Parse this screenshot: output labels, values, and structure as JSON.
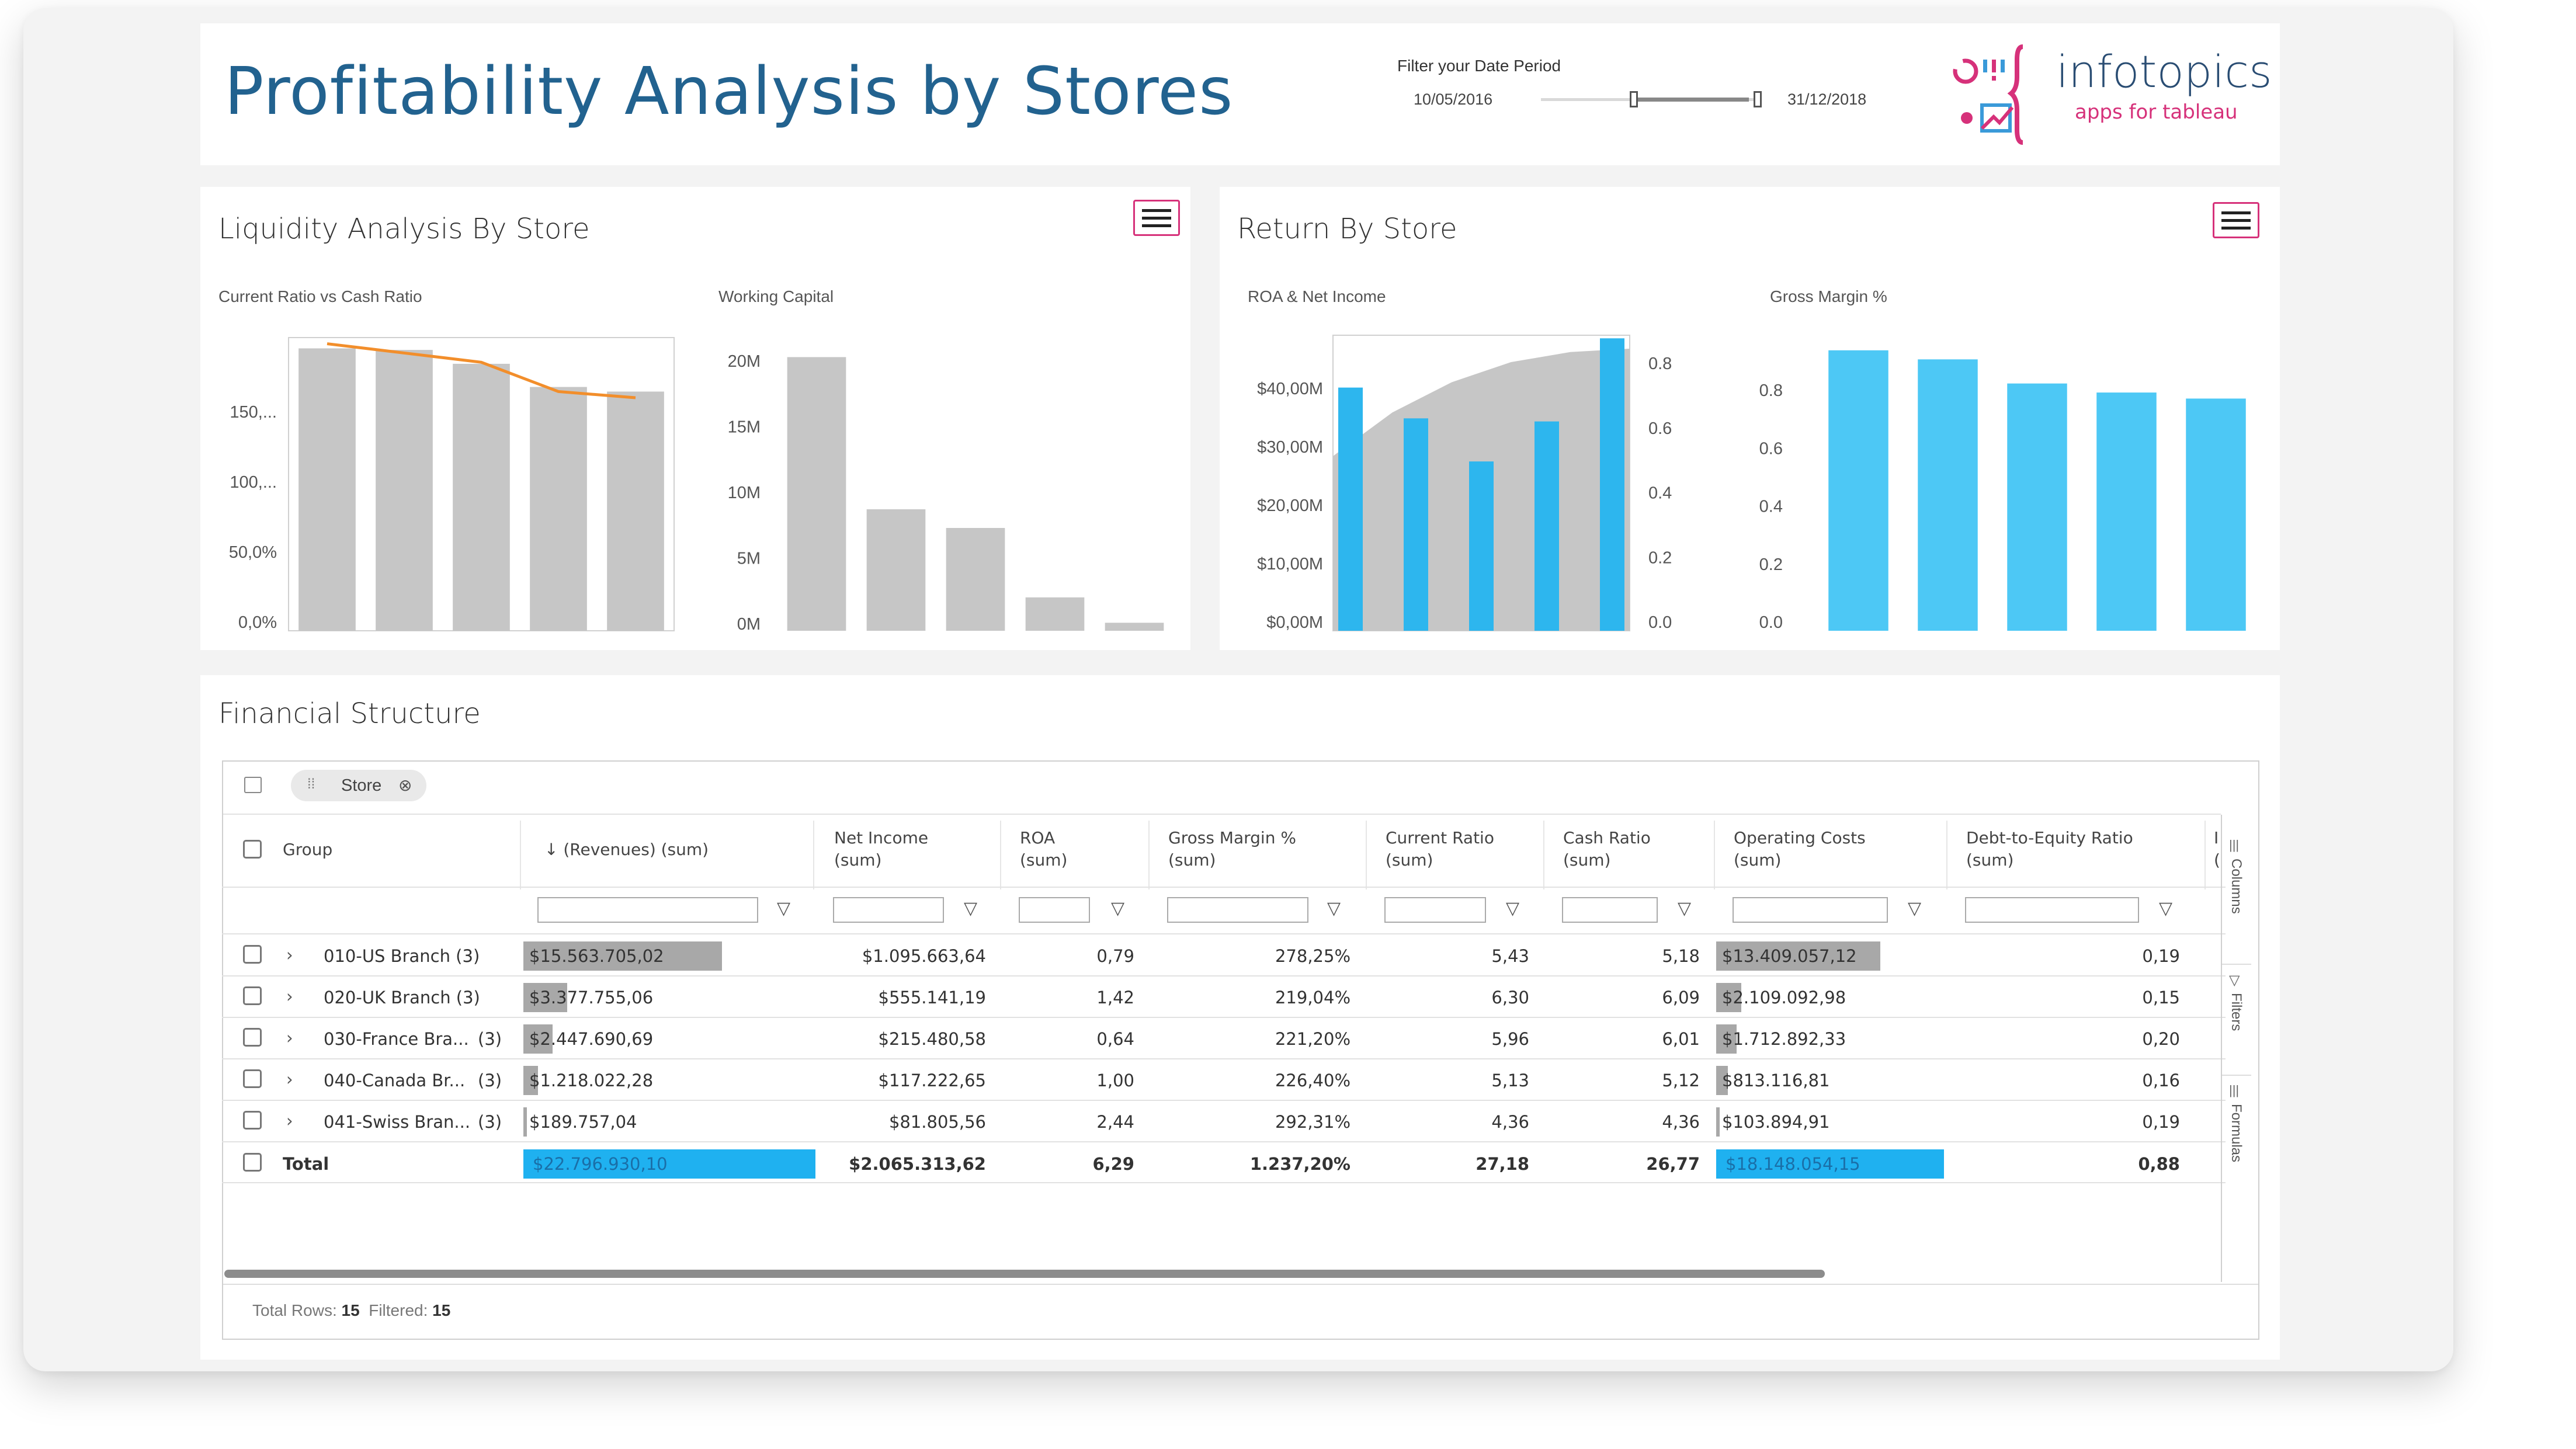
{
  "header": {
    "title": "Profitability Analysis by Stores",
    "filter_label": "Filter your Date Period",
    "date_start": "10/05/2016",
    "date_end": "31/12/2018",
    "logo_text": "infotopics",
    "logo_sub": "apps for tableau"
  },
  "liquidity": {
    "title": "Liquidity Analysis By Store",
    "chart1_title": "Current Ratio vs Cash Ratio",
    "chart2_title": "Working Capital"
  },
  "returns": {
    "title": "Return By Store",
    "chart1_title": "ROA & Net Income",
    "chart2_title": "Gross Margin %"
  },
  "chart_data": [
    {
      "type": "bar",
      "title": "Current Ratio vs Cash Ratio",
      "y_ticks": [
        "0,0%",
        "50,0%",
        "100,...",
        "150,..."
      ],
      "ylim": [
        0,
        190
      ],
      "series": [
        {
          "values": [
            183,
            182,
            173,
            158,
            155
          ]
        },
        {
          "type": "line",
          "values": [
            186,
            180,
            174,
            155,
            151
          ]
        }
      ],
      "colors": {
        "bars": "#c6c6c6",
        "line": "#f28e2b"
      }
    },
    {
      "type": "bar",
      "title": "Working Capital",
      "y_ticks": [
        "0M",
        "5M",
        "10M",
        "15M",
        "20M"
      ],
      "ylim": [
        0,
        21
      ],
      "values": [
        20.5,
        9.1,
        7.7,
        2.5,
        0.6
      ],
      "colors": {
        "bars": "#c6c6c6"
      }
    },
    {
      "type": "bar",
      "title": "ROA & Net Income",
      "y_ticks": [
        "$0,00M",
        "$10,00M",
        "$20,00M",
        "$30,00M",
        "$40,00M"
      ],
      "y2_ticks": [
        "0.0",
        "0.2",
        "0.4",
        "0.6",
        "0.8"
      ],
      "ylim": [
        0,
        48
      ],
      "y2lim": [
        0,
        0.88
      ],
      "series": [
        {
          "type": "area",
          "values": [
            0.52,
            0.65,
            0.74,
            0.8,
            0.83,
            0.84
          ]
        },
        {
          "values": [
            39.5,
            34.5,
            27.5,
            34.0,
            47.5
          ]
        }
      ],
      "colors": {
        "area": "#c6c6c6",
        "bars": "#2db6ee"
      }
    },
    {
      "type": "bar",
      "title": "Gross Margin %",
      "y_ticks": [
        "0.0",
        "0.2",
        "0.4",
        "0.6",
        "0.8"
      ],
      "ylim": [
        0,
        0.98
      ],
      "values": [
        0.93,
        0.9,
        0.82,
        0.79,
        0.77
      ],
      "colors": {
        "bars": "#4dc8f5"
      }
    }
  ],
  "financial": {
    "title": "Financial Structure",
    "chip_label": "Store",
    "columns": [
      {
        "label": "Group"
      },
      {
        "label": "↓ (Revenues) (sum)"
      },
      {
        "label": "Net Income",
        "label2": "(sum)"
      },
      {
        "label": "ROA",
        "label2": "(sum)"
      },
      {
        "label": "Gross Margin %",
        "label2": "(sum)"
      },
      {
        "label": "Current Ratio",
        "label2": "(sum)"
      },
      {
        "label": "Cash Ratio",
        "label2": "(sum)"
      },
      {
        "label": "Operating Costs",
        "label2": "(sum)"
      },
      {
        "label": "Debt-to-Equity Ratio",
        "label2": "(sum)"
      },
      {
        "label": "I",
        "label2": "("
      }
    ],
    "rows": [
      {
        "group": "010-US Branch (3)",
        "revenues": "$15.563.705,02",
        "rev_fraction": 0.68,
        "net_income": "$1.095.663,64",
        "roa": "0,79",
        "gross_margin": "278,25%",
        "current_ratio": "5,43",
        "cash_ratio": "5,18",
        "op_costs": "$13.409.057,12",
        "op_fraction": 0.72,
        "de_ratio": "0,19"
      },
      {
        "group": "020-UK Branch (3)",
        "revenues": "$3.377.755,06",
        "rev_fraction": 0.15,
        "net_income": "$555.141,19",
        "roa": "1,42",
        "gross_margin": "219,04%",
        "current_ratio": "6,30",
        "cash_ratio": "6,09",
        "op_costs": "$2.109.092,98",
        "op_fraction": 0.11,
        "de_ratio": "0,15"
      },
      {
        "group": "030-France Bra...",
        "count": "(3)",
        "revenues": "$2.447.690,69",
        "rev_fraction": 0.1,
        "net_income": "$215.480,58",
        "roa": "0,64",
        "gross_margin": "221,20%",
        "current_ratio": "5,96",
        "cash_ratio": "6,01",
        "op_costs": "$1.712.892,33",
        "op_fraction": 0.09,
        "de_ratio": "0,20"
      },
      {
        "group": "040-Canada Br...",
        "count": "(3)",
        "revenues": "$1.218.022,28",
        "rev_fraction": 0.05,
        "net_income": "$117.222,65",
        "roa": "1,00",
        "gross_margin": "226,40%",
        "current_ratio": "5,13",
        "cash_ratio": "5,12",
        "op_costs": "$813.116,81",
        "op_fraction": 0.05,
        "de_ratio": "0,16"
      },
      {
        "group": "041-Swiss Bran...",
        "count": "(3)",
        "revenues": "$189.757,04",
        "rev_fraction": 0.01,
        "net_income": "$81.805,56",
        "roa": "2,44",
        "gross_margin": "292,31%",
        "current_ratio": "4,36",
        "cash_ratio": "4,36",
        "op_costs": "$103.894,91",
        "op_fraction": 0.01,
        "de_ratio": "0,19"
      }
    ],
    "total": {
      "label": "Total",
      "revenues": "$22.796.930,10",
      "net_income": "$2.065.313,62",
      "roa": "6,29",
      "gross_margin": "1.237,20%",
      "current_ratio": "27,18",
      "cash_ratio": "26,77",
      "op_costs": "$18.148.054,15",
      "de_ratio": "0,88"
    },
    "side_tabs": [
      "Columns",
      "Filters",
      "Formulas"
    ],
    "footer": {
      "rows_label": "Total Rows:",
      "rows_value": "15",
      "filtered_label": "Filtered:",
      "filtered_value": "15"
    }
  },
  "colors": {
    "title_blue": "#22628f",
    "accent_pink": "#d6317a",
    "bar_gray": "#c6c6c6",
    "bar_blue": "#2db6ee",
    "line_orange": "#f28e2b"
  }
}
